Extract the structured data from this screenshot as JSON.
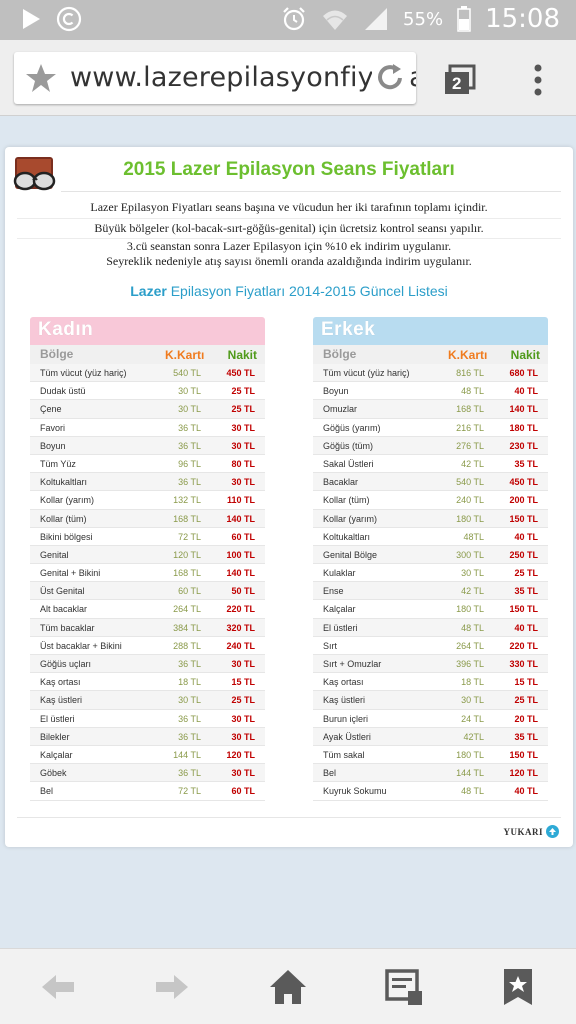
{
  "status_bar": {
    "battery_percent": "55%",
    "time": "15:08"
  },
  "browser": {
    "url": "www.lazerepilasyonfiyatlari",
    "tab_count": "2"
  },
  "page": {
    "title": "2015 Lazer Epilasyon Seans Fiyatları",
    "descriptions": [
      "Lazer Epilasyon Fiyatları seans başına ve vücudun her iki tarafının toplamı içindir.",
      "Büyük bölgeler (kol-bacak-sırt-göğüs-genital) için ücretsiz kontrol seansı yapılır.",
      "3.cü seanstan sonra Lazer Epilasyon için %10 ek indirim uygulanır.",
      "Seyreklik nedeniyle atış sayısı önemli oranda azaldığında indirim uygulanır."
    ],
    "subtitle_bold": "Lazer",
    "subtitle_rest": " Epilasyon Fiyatları 2014-2015 Güncel Listesi",
    "col_region": "Bölge",
    "col_card": "K.Kartı",
    "col_cash": "Nakit",
    "women": {
      "heading": "Kadın",
      "rows": [
        [
          "Tüm vücut (yüz hariç)",
          "540 TL",
          "450 TL"
        ],
        [
          "Dudak üstü",
          "30 TL",
          "25 TL"
        ],
        [
          "Çene",
          "30 TL",
          "25 TL"
        ],
        [
          "Favori",
          "36 TL",
          "30 TL"
        ],
        [
          "Boyun",
          "36 TL",
          "30 TL"
        ],
        [
          "Tüm Yüz",
          "96 TL",
          "80 TL"
        ],
        [
          "Koltukaltları",
          "36 TL",
          "30 TL"
        ],
        [
          "Kollar (yarım)",
          "132 TL",
          "110 TL"
        ],
        [
          "Kollar (tüm)",
          "168 TL",
          "140 TL"
        ],
        [
          "Bikini bölgesi",
          "72 TL",
          "60 TL"
        ],
        [
          "Genital",
          "120 TL",
          "100 TL"
        ],
        [
          "Genital + Bikini",
          "168 TL",
          "140 TL"
        ],
        [
          "Üst Genital",
          "60 TL",
          "50 TL"
        ],
        [
          "Alt bacaklar",
          "264 TL",
          "220 TL"
        ],
        [
          "Tüm bacaklar",
          "384 TL",
          "320 TL"
        ],
        [
          "Üst bacaklar + Bikini",
          "288 TL",
          "240 TL"
        ],
        [
          "Göğüs uçları",
          "36 TL",
          "30 TL"
        ],
        [
          "Kaş ortası",
          "18 TL",
          "15 TL"
        ],
        [
          "Kaş üstleri",
          "30 TL",
          "25 TL"
        ],
        [
          "El üstleri",
          "36 TL",
          "30 TL"
        ],
        [
          "Bilekler",
          "36 TL",
          "30 TL"
        ],
        [
          "Kalçalar",
          "144 TL",
          "120 TL"
        ],
        [
          "Göbek",
          "36 TL",
          "30 TL"
        ],
        [
          "Bel",
          "72 TL",
          "60 TL"
        ]
      ]
    },
    "men": {
      "heading": "Erkek",
      "rows": [
        [
          "Tüm vücut (yüz hariç)",
          "816 TL",
          "680 TL"
        ],
        [
          "Boyun",
          "48 TL",
          "40 TL"
        ],
        [
          "Omuzlar",
          "168 TL",
          "140 TL"
        ],
        [
          "Göğüs (yarım)",
          "216 TL",
          "180 TL"
        ],
        [
          "Göğüs (tüm)",
          "276 TL",
          "230 TL"
        ],
        [
          "Sakal Üstleri",
          "42 TL",
          "35 TL"
        ],
        [
          "Bacaklar",
          "540 TL",
          "450 TL"
        ],
        [
          "Kollar (tüm)",
          "240 TL",
          "200 TL"
        ],
        [
          "Kollar (yarım)",
          "180 TL",
          "150 TL"
        ],
        [
          "Koltukaltları",
          "48TL",
          "40 TL"
        ],
        [
          "Genital Bölge",
          "300 TL",
          "250 TL"
        ],
        [
          "Kulaklar",
          "30 TL",
          "25 TL"
        ],
        [
          "Ense",
          "42 TL",
          "35 TL"
        ],
        [
          "Kalçalar",
          "180 TL",
          "150 TL"
        ],
        [
          "El üstleri",
          "48 TL",
          "40 TL"
        ],
        [
          "Sırt",
          "264 TL",
          "220 TL"
        ],
        [
          "Sırt + Omuzlar",
          "396 TL",
          "330 TL"
        ],
        [
          "Kaş ortası",
          "18 TL",
          "15 TL"
        ],
        [
          "Kaş üstleri",
          "30 TL",
          "25 TL"
        ],
        [
          "Burun içleri",
          "24 TL",
          "20 TL"
        ],
        [
          "Ayak Üstleri",
          "42TL",
          "35 TL"
        ],
        [
          "Tüm sakal",
          "180 TL",
          "150 TL"
        ],
        [
          "Bel",
          "144 TL",
          "120 TL"
        ],
        [
          "Kuyruk Sokumu",
          "48 TL",
          "40 TL"
        ]
      ]
    },
    "up_link": "YUKARI"
  },
  "colors": {
    "title_green": "#6cbf2f",
    "subtitle_blue": "#2b9ec9",
    "women_header": "#f8c8d8",
    "men_header": "#b8dcf0",
    "price_red": "#c00000"
  }
}
